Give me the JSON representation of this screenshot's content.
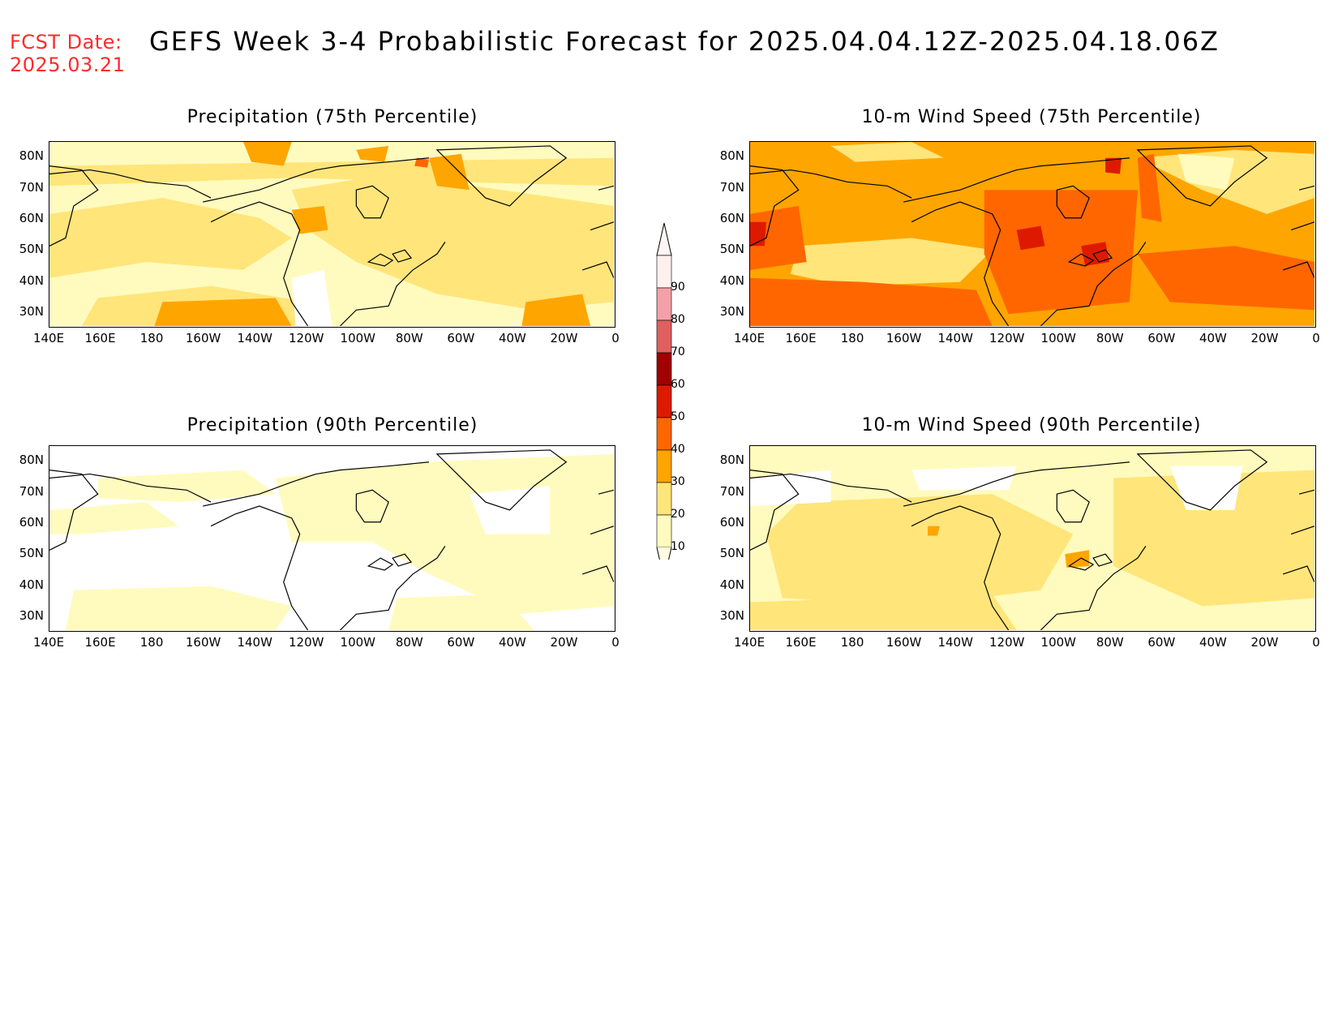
{
  "header": {
    "fcst_label": "FCST Date:",
    "fcst_date": "2025.03.21",
    "title": "GEFS Week 3-4 Probabilistic Forecast for 2025.04.04.12Z-2025.04.18.06Z"
  },
  "panels": [
    {
      "title": "Precipitation (75th Percentile)",
      "style": "precip75"
    },
    {
      "title": "10-m Wind Speed (75th Percentile)",
      "style": "wind75"
    },
    {
      "title": "Precipitation (90th Percentile)",
      "style": "precip90"
    },
    {
      "title": "10-m Wind Speed (90th Percentile)",
      "style": "wind90"
    }
  ],
  "axes": {
    "lat_ticks": [
      "80N",
      "70N",
      "60N",
      "50N",
      "40N",
      "30N"
    ],
    "lat_values": [
      80,
      70,
      60,
      50,
      40,
      30
    ],
    "lat_range": [
      25,
      85
    ],
    "lon_ticks": [
      "140E",
      "160E",
      "180",
      "160W",
      "140W",
      "120W",
      "100W",
      "80W",
      "60W",
      "40W",
      "20W",
      "0"
    ],
    "lon_range": [
      "140E",
      "0"
    ]
  },
  "colorbar": {
    "labels": [
      "90",
      "80",
      "70",
      "60",
      "50",
      "40",
      "30",
      "20",
      "10"
    ],
    "colors": [
      "#fff0f0",
      "#f4a0a8",
      "#e06060",
      "#a00000",
      "#dd1a00",
      "#ff6600",
      "#ffa500",
      "#ffe57a",
      "#fffbbe"
    ]
  }
}
